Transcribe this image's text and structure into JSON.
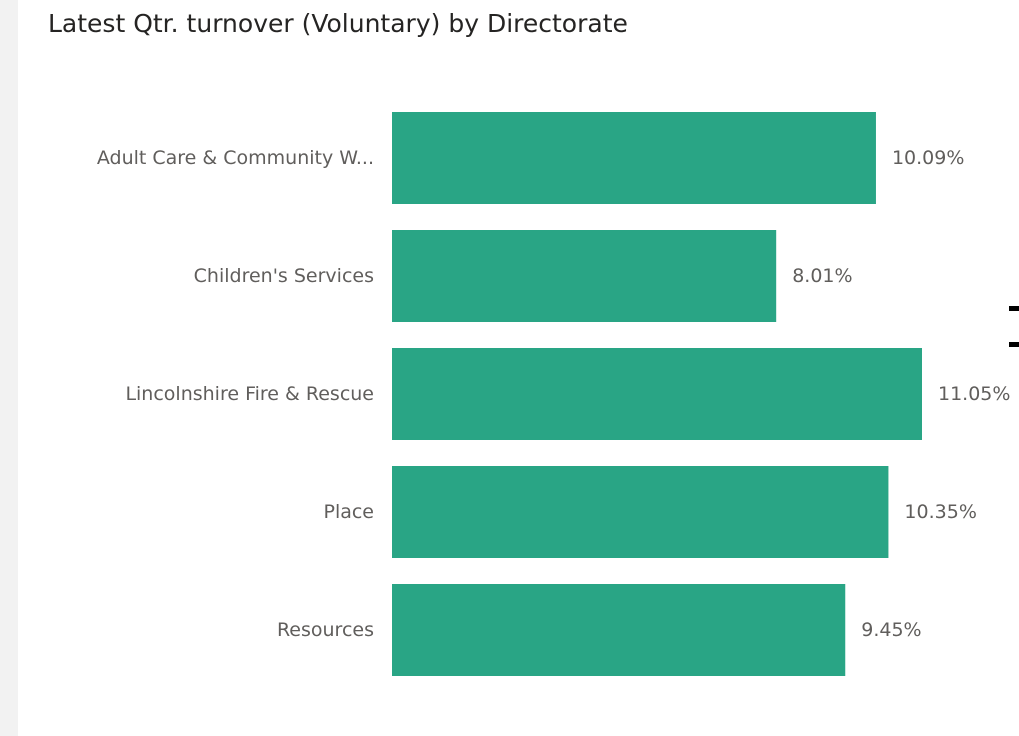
{
  "chart_data": {
    "type": "bar",
    "orientation": "horizontal",
    "title": "Latest Qtr. turnover (Voluntary) by Directorate",
    "categories": [
      "Adult Care & Community W...",
      "Children's Services",
      "Lincolnshire Fire & Rescue",
      "Place",
      "Resources"
    ],
    "values": [
      10.09,
      8.01,
      11.05,
      10.35,
      9.45
    ],
    "data_labels": [
      "10.09%",
      "8.01%",
      "11.05%",
      "10.35%",
      "9.45%"
    ],
    "value_unit": "%",
    "xlim": [
      0,
      11.05
    ],
    "grid": false,
    "legend": "none",
    "colors": {
      "bar": "#29a585",
      "label_outside": "#605e5c",
      "label_inside": "#ffffff",
      "category_label": "#605e5c",
      "title": "#252423"
    }
  }
}
